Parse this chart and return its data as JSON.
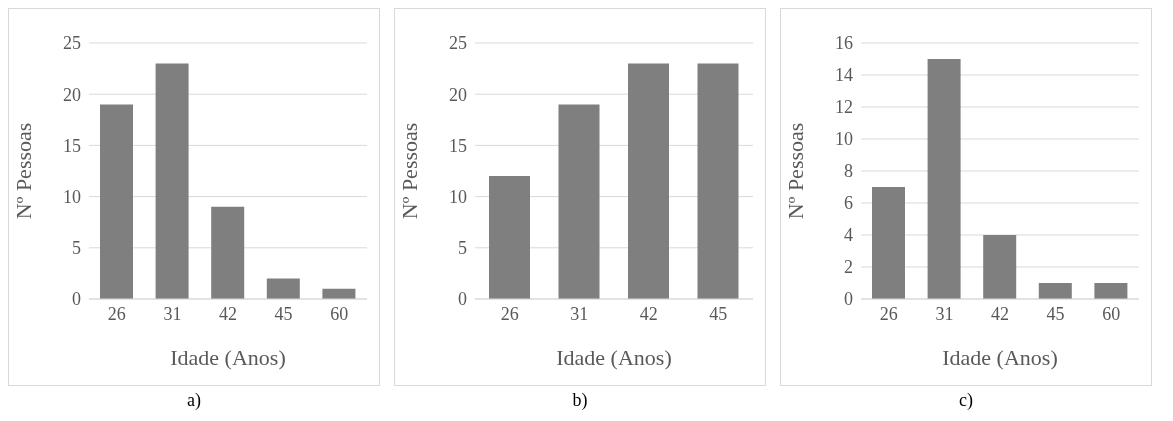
{
  "chart_data": [
    {
      "type": "bar",
      "categories": [
        "26",
        "31",
        "42",
        "45",
        "60"
      ],
      "values": [
        19,
        23,
        9,
        2,
        1
      ],
      "color": "#7f7f7f",
      "xlabel": "Idade (Anos)",
      "ylabel": "Nº Pessoas",
      "ylim": [
        0,
        25
      ],
      "yticks": [
        0,
        5,
        10,
        15,
        20,
        25
      ],
      "grid": "y",
      "annotations": [
        "a)"
      ]
    },
    {
      "type": "bar",
      "categories": [
        "26",
        "31",
        "42",
        "45"
      ],
      "values": [
        12,
        19,
        23,
        23
      ],
      "color": "#7f7f7f",
      "xlabel": "Idade (Anos)",
      "ylabel": "Nº Pessoas",
      "ylim": [
        0,
        25
      ],
      "yticks": [
        0,
        5,
        10,
        15,
        20,
        25
      ],
      "grid": "y",
      "annotations": [
        "b)"
      ]
    },
    {
      "type": "bar",
      "categories": [
        "26",
        "31",
        "42",
        "45",
        "60"
      ],
      "values": [
        7,
        15,
        4,
        1,
        1
      ],
      "color": "#7f7f7f",
      "xlabel": "Idade (Anos)",
      "ylabel": "Nº Pessoas",
      "ylim": [
        0,
        16
      ],
      "yticks": [
        0,
        2,
        4,
        6,
        8,
        10,
        12,
        14,
        16
      ],
      "grid": "y",
      "annotations": [
        "c)"
      ]
    }
  ]
}
